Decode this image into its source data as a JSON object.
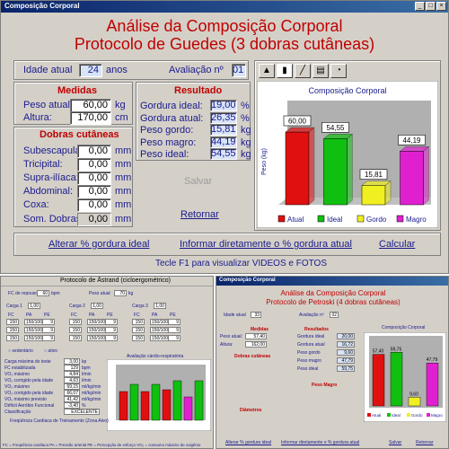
{
  "main": {
    "window_title": "Composição Corporal",
    "header_line1": "Análise da Composição Corporal",
    "header_line2": "Protocolo de Guedes (3 dobras cutâneas)",
    "idade_label": "Idade atual",
    "idade_value": "24",
    "idade_unit": "anos",
    "avaliacao_label": "Avaliação nº",
    "avaliacao_value": "01",
    "medidas_title": "Medidas",
    "peso_label": "Peso atual:",
    "peso_value": "60,00",
    "peso_unit": "kg",
    "altura_label": "Altura:",
    "altura_value": "170,00",
    "altura_unit": "cm",
    "dobras_title": "Dobras cutâneas",
    "dobras": [
      {
        "label": "Subescapular:",
        "value": "0,00",
        "unit": "mm"
      },
      {
        "label": "Tricipital:",
        "value": "0,00",
        "unit": "mm"
      },
      {
        "label": "Supra-ilíaca:",
        "value": "0,00",
        "unit": "mm"
      },
      {
        "label": "Abdominal:",
        "value": "0,00",
        "unit": "mm"
      },
      {
        "label": "Coxa:",
        "value": "0,00",
        "unit": "mm"
      }
    ],
    "soma_label": "Som. Dobras:",
    "soma_value": "0,00",
    "soma_unit": "mm",
    "resultado_title": "Resultado",
    "resultados": [
      {
        "label": "Gordura ideal:",
        "value": "19,00",
        "unit": "%"
      },
      {
        "label": "Gordura atual:",
        "value": "26,35",
        "unit": "%"
      },
      {
        "label": "Peso gordo:",
        "value": "15,81",
        "unit": "kg"
      },
      {
        "label": "Peso magro:",
        "value": "44,19",
        "unit": "kg"
      },
      {
        "label": "Peso ideal:",
        "value": "54,55",
        "unit": "kg"
      }
    ],
    "salvar_label": "Salvar",
    "retornar_label": "Retornar",
    "alterar_label": "Alterar % gordura ideal",
    "informar_label": "Informar diretamente o % gordura atual",
    "calcular_label": "Calcular",
    "status_text": "Tecle F1 para visualizar VIDEOS e FOTOS"
  },
  "chart_data": {
    "type": "bar",
    "title": "Composição Corporal",
    "ylabel": "Peso (kg)",
    "categories": [
      "Atual",
      "Ideal",
      "Gordo",
      "Magro"
    ],
    "values": [
      60.0,
      54.55,
      15.81,
      44.19
    ],
    "value_labels": [
      "60,00",
      "54,55",
      "15,81",
      "44,19"
    ],
    "colors": [
      "#e01010",
      "#10c010",
      "#f0f020",
      "#e020d0"
    ],
    "ylim": [
      0,
      80
    ],
    "grid": false,
    "legend": "bottom"
  },
  "astrand": {
    "title": "Protocolo de Åstrand (cicloergométrico)",
    "fc_repouso_label": "FC de repouso",
    "fc_repouso_value": "60",
    "fc_repouso_unit": "bpm",
    "peso_label": "Peso atual",
    "peso_value": "70",
    "peso_unit": "kg",
    "carga_labels": [
      "Carga 1",
      "Carga 2",
      "Carga 3"
    ],
    "carga_values": [
      "1,00",
      "1,00",
      "1,00"
    ],
    "tabela_headers": [
      "FC",
      "PA",
      "PE"
    ],
    "tabela_row": [
      "150",
      "150/100",
      "9"
    ],
    "sexo_options": [
      "sedentário",
      "ativo"
    ],
    "outputs": [
      {
        "label": "Carga máxima do teste",
        "value": "3,00",
        "unit": "kp"
      },
      {
        "label": "FC estabilizada",
        "value": "129",
        "unit": "bpm"
      },
      {
        "label": "VO₂ máximo",
        "value": "4,84",
        "unit": "l/min"
      },
      {
        "label": "VO₂ corrigido pela idade",
        "value": "4,63",
        "unit": "l/min"
      },
      {
        "label": "VO₂ máximo",
        "value": "69,15",
        "unit": "ml/kg/min"
      },
      {
        "label": "VO₂ corrigido pela idade",
        "value": "66,07",
        "unit": "ml/kg/min"
      },
      {
        "label": "VO₂ máximo previsto",
        "value": "41,42",
        "unit": "ml/kg/min"
      },
      {
        "label": "Déficit Aeróbio Funcional",
        "value": "-3,40",
        "unit": "%"
      },
      {
        "label": "Classificação",
        "value": "EXCELENTE",
        "unit": ""
      }
    ],
    "chart_title": "Avaliação cárdio-respiratória",
    "freq_label": "Freqüência Cardíaca de Treinamento (Zona Alvo)",
    "legend_text": "FC = Freqüência cardíaca   PA = Pressão arterial   PE = Percepção de esforço   VO₂ = consumo máximo de oxigênio"
  },
  "petroski": {
    "window_title": "Composição Corporal",
    "header_line1": "Análise da Composição Corporal",
    "header_line2": "Protocolo de Petroski (4 dobras cutâneas)",
    "idade_label": "Idade atual",
    "idade_value": "33",
    "avaliacao_label": "Avaliação nº",
    "avaliacao_value": "02",
    "medidas_title": "Medidas",
    "peso_label": "Peso atual:",
    "peso_value": "57,40",
    "altura_label": "Altura:",
    "altura_value": "162,00",
    "dobras_title": "Dobras cutâneas",
    "resultado_title": "Resultados",
    "resultados": [
      {
        "label": "Gordura ideal",
        "value": "20,00"
      },
      {
        "label": "Gordura atual",
        "value": "16,72"
      },
      {
        "label": "Peso gordo",
        "value": "9,60"
      },
      {
        "label": "Peso magro",
        "value": "47,79"
      },
      {
        "label": "Peso ideal",
        "value": "59,75"
      }
    ],
    "peso_magro_title": "Peso Magro",
    "diametros_title": "Diâmetros",
    "chart_title": "Composição Corporal",
    "salvar_label": "Salvar",
    "retornar_label": "Retornar",
    "alterar_label": "Alterar % gordura ideal",
    "informar_label": "Informar diretamente o % gordura atual"
  },
  "chart_data_petroski": {
    "type": "bar",
    "title": "Composição Corporal",
    "categories": [
      "Atual",
      "Ideal",
      "Gordo",
      "Magro"
    ],
    "values": [
      57.4,
      59.75,
      9.6,
      47.79
    ],
    "value_labels": [
      "57,40",
      "59,75",
      "9,60",
      "47,79"
    ],
    "colors": [
      "#e01010",
      "#10c010",
      "#f0f020",
      "#e020d0"
    ]
  }
}
